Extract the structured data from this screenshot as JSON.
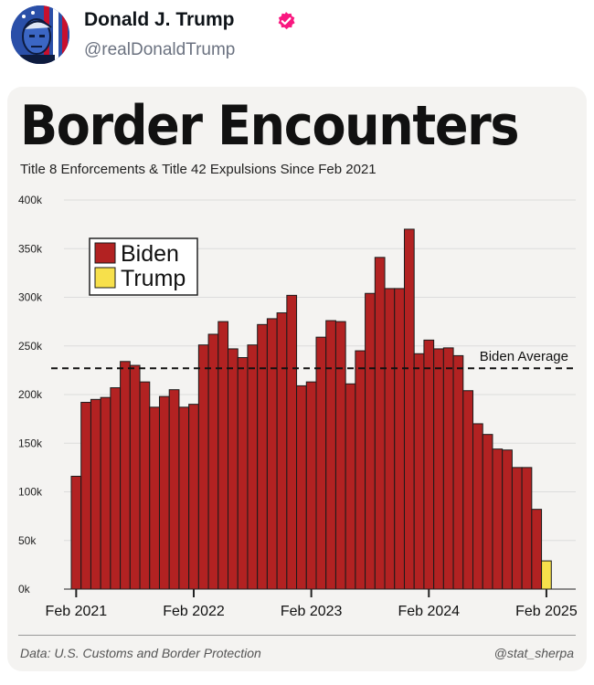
{
  "post": {
    "display_name": "Donald J. Trump",
    "handle": "@realDonaldTrump",
    "verified_icon": "verified-badge-icon",
    "badge_color": "#f91880"
  },
  "card": {
    "footer_source": "Data: U.S. Customs and Border Protection",
    "footer_credit": "@stat_sherpa"
  },
  "chart_data": {
    "type": "bar",
    "title": "Border Encounters",
    "subtitle": "Title 8 Enforcements & Title 42 Expulsions Since Feb 2021",
    "xlabel": "",
    "ylabel": "",
    "ylim": [
      0,
      400000
    ],
    "yticks": [
      0,
      50000,
      100000,
      150000,
      200000,
      250000,
      300000,
      350000,
      400000
    ],
    "ytick_labels": [
      "0k",
      "50k",
      "100k",
      "150k",
      "200k",
      "250k",
      "300k",
      "350k",
      "400k"
    ],
    "xtick_labels": [
      "Feb 2021",
      "Feb 2022",
      "Feb 2023",
      "Feb 2024",
      "Feb 2025"
    ],
    "categories": [
      "Feb 2021",
      "Mar 2021",
      "Apr 2021",
      "May 2021",
      "Jun 2021",
      "Jul 2021",
      "Aug 2021",
      "Sep 2021",
      "Oct 2021",
      "Nov 2021",
      "Dec 2021",
      "Jan 2022",
      "Feb 2022",
      "Mar 2022",
      "Apr 2022",
      "May 2022",
      "Jun 2022",
      "Jul 2022",
      "Aug 2022",
      "Sep 2022",
      "Oct 2022",
      "Nov 2022",
      "Dec 2022",
      "Jan 2023",
      "Feb 2023",
      "Mar 2023",
      "Apr 2023",
      "May 2023",
      "Jun 2023",
      "Jul 2023",
      "Aug 2023",
      "Sep 2023",
      "Oct 2023",
      "Nov 2023",
      "Dec 2023",
      "Jan 2024",
      "Feb 2024",
      "Mar 2024",
      "Apr 2024",
      "May 2024",
      "Jun 2024",
      "Jul 2024",
      "Aug 2024",
      "Sep 2024",
      "Oct 2024",
      "Nov 2024",
      "Dec 2024",
      "Jan 2025",
      "Feb 2025"
    ],
    "series": [
      {
        "name": "Biden",
        "color": "#b22222",
        "values": [
          116000,
          192000,
          195000,
          197000,
          207000,
          234000,
          230000,
          213000,
          187000,
          198000,
          205000,
          187000,
          190000,
          251000,
          262000,
          275000,
          247000,
          238000,
          251000,
          272000,
          278000,
          284000,
          302000,
          209000,
          213000,
          259000,
          276000,
          275000,
          211000,
          245000,
          304000,
          341000,
          309000,
          309000,
          370000,
          242000,
          256000,
          247000,
          248000,
          240000,
          204000,
          170000,
          159000,
          144000,
          143000,
          125000,
          125000,
          82000,
          0
        ]
      },
      {
        "name": "Trump",
        "color": "#f7e04b",
        "values": [
          0,
          0,
          0,
          0,
          0,
          0,
          0,
          0,
          0,
          0,
          0,
          0,
          0,
          0,
          0,
          0,
          0,
          0,
          0,
          0,
          0,
          0,
          0,
          0,
          0,
          0,
          0,
          0,
          0,
          0,
          0,
          0,
          0,
          0,
          0,
          0,
          0,
          0,
          0,
          0,
          0,
          0,
          0,
          0,
          0,
          0,
          0,
          0,
          29000
        ]
      }
    ],
    "reference_line": {
      "label": "Biden Average",
      "value": 227000,
      "style": "dashed"
    },
    "legend": {
      "placement": "top-left"
    },
    "grid": true
  }
}
